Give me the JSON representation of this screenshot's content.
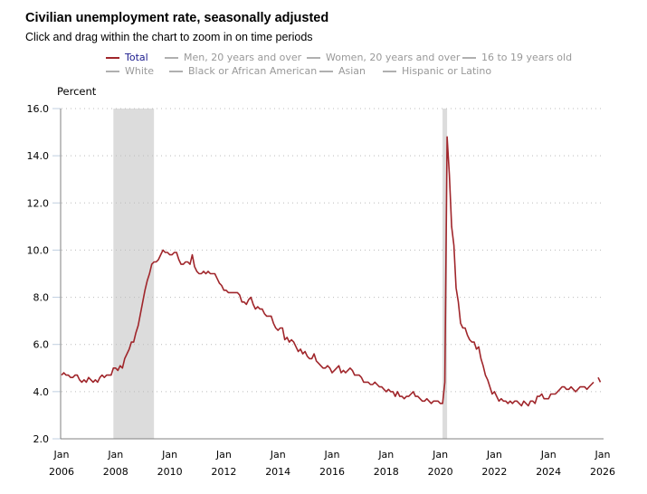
{
  "header": {
    "title": "Civilian unemployment rate, seasonally adjusted",
    "subtitle": "Click and drag within the chart to zoom in on time periods"
  },
  "legend": {
    "items": [
      {
        "label": "Total",
        "active": true
      },
      {
        "label": "Men, 20 years and over",
        "active": false
      },
      {
        "label": "Women, 20 years and over",
        "active": false
      },
      {
        "label": "16 to 19 years old",
        "active": false
      },
      {
        "label": "White",
        "active": false
      },
      {
        "label": "Black or African American",
        "active": false
      },
      {
        "label": "Asian",
        "active": false
      },
      {
        "label": "Hispanic or Latino",
        "active": false
      }
    ]
  },
  "colors": {
    "series": "#a0262b",
    "recession": "#dcdcdc",
    "grid": "#bbbbbb",
    "axis": "#808080",
    "active_legend_text": "#1a1a8c",
    "inactive_legend": "#999999"
  },
  "chart_data": {
    "type": "line",
    "title": "Civilian unemployment rate, seasonally adjusted",
    "ylabel": "Percent",
    "xlabel": "",
    "ylim": [
      2.0,
      16.0
    ],
    "yticks": [
      "16.0",
      "14.0",
      "12.0",
      "10.0",
      "8.0",
      "6.0",
      "4.0",
      "2.0"
    ],
    "ytick_values": [
      16,
      14,
      12,
      10,
      8,
      6,
      4,
      2
    ],
    "xticks": [
      {
        "month": "Jan",
        "year": "2006"
      },
      {
        "month": "Jan",
        "year": "2008"
      },
      {
        "month": "Jan",
        "year": "2010"
      },
      {
        "month": "Jan",
        "year": "2012"
      },
      {
        "month": "Jan",
        "year": "2014"
      },
      {
        "month": "Jan",
        "year": "2016"
      },
      {
        "month": "Jan",
        "year": "2018"
      },
      {
        "month": "Jan",
        "year": "2020"
      },
      {
        "month": "Jan",
        "year": "2022"
      },
      {
        "month": "Jan",
        "year": "2024"
      },
      {
        "month": "Jan",
        "year": "2026"
      }
    ],
    "xtick_values": [
      2006,
      2008,
      2010,
      2012,
      2014,
      2016,
      2018,
      2020,
      2022,
      2024,
      2026
    ],
    "xlim": [
      2006.0,
      2026.0
    ],
    "grid": true,
    "recessions": [
      {
        "start": 2007.917,
        "end": 2009.417
      },
      {
        "start": 2020.083,
        "end": 2020.25
      }
    ],
    "series": [
      {
        "name": "Total",
        "start": "2006-01",
        "frequency": "monthly",
        "values": [
          4.7,
          4.8,
          4.7,
          4.7,
          4.6,
          4.6,
          4.7,
          4.7,
          4.5,
          4.4,
          4.5,
          4.4,
          4.6,
          4.5,
          4.4,
          4.5,
          4.4,
          4.6,
          4.7,
          4.6,
          4.7,
          4.7,
          4.7,
          5.0,
          5.0,
          4.9,
          5.1,
          5.0,
          5.4,
          5.6,
          5.8,
          6.1,
          6.1,
          6.5,
          6.8,
          7.3,
          7.8,
          8.3,
          8.7,
          9.0,
          9.4,
          9.5,
          9.5,
          9.6,
          9.8,
          10.0,
          9.9,
          9.9,
          9.8,
          9.8,
          9.9,
          9.9,
          9.6,
          9.4,
          9.4,
          9.5,
          9.5,
          9.4,
          9.8,
          9.3,
          9.1,
          9.0,
          9.0,
          9.1,
          9.0,
          9.1,
          9.0,
          9.0,
          9.0,
          8.8,
          8.6,
          8.5,
          8.3,
          8.3,
          8.2,
          8.2,
          8.2,
          8.2,
          8.2,
          8.1,
          7.8,
          7.8,
          7.7,
          7.9,
          8.0,
          7.7,
          7.5,
          7.6,
          7.5,
          7.5,
          7.3,
          7.2,
          7.2,
          7.2,
          6.9,
          6.7,
          6.6,
          6.7,
          6.7,
          6.2,
          6.3,
          6.1,
          6.2,
          6.1,
          5.9,
          5.7,
          5.8,
          5.6,
          5.7,
          5.5,
          5.4,
          5.4,
          5.6,
          5.3,
          5.2,
          5.1,
          5.0,
          5.0,
          5.1,
          5.0,
          4.8,
          4.9,
          5.0,
          5.1,
          4.8,
          4.9,
          4.8,
          4.9,
          5.0,
          4.9,
          4.7,
          4.7,
          4.7,
          4.6,
          4.4,
          4.4,
          4.4,
          4.3,
          4.3,
          4.4,
          4.3,
          4.2,
          4.2,
          4.1,
          4.0,
          4.1,
          4.0,
          4.0,
          3.8,
          4.0,
          3.8,
          3.8,
          3.7,
          3.8,
          3.8,
          3.9,
          4.0,
          3.8,
          3.8,
          3.7,
          3.6,
          3.6,
          3.7,
          3.6,
          3.5,
          3.6,
          3.6,
          3.6,
          3.5,
          3.5,
          4.4,
          14.8,
          13.2,
          11.0,
          10.2,
          8.4,
          7.8,
          6.9,
          6.7,
          6.7,
          6.4,
          6.2,
          6.1,
          6.1,
          5.8,
          5.9,
          5.4,
          5.1,
          4.7,
          4.5,
          4.2,
          3.9,
          4.0,
          3.8,
          3.6,
          3.7,
          3.6,
          3.6,
          3.5,
          3.6,
          3.5,
          3.6,
          3.6,
          3.5,
          3.4,
          3.6,
          3.5,
          3.4,
          3.6,
          3.6,
          3.5,
          3.8,
          3.8,
          3.9,
          3.7,
          3.7,
          3.7,
          3.9,
          3.9,
          3.9,
          4.0,
          4.1,
          4.2,
          4.2,
          4.1,
          4.1,
          4.2,
          4.1,
          4.0,
          4.1,
          4.2,
          4.2,
          4.2,
          4.1,
          4.2,
          4.3,
          4.4,
          null,
          4.6,
          4.4
        ]
      }
    ]
  }
}
